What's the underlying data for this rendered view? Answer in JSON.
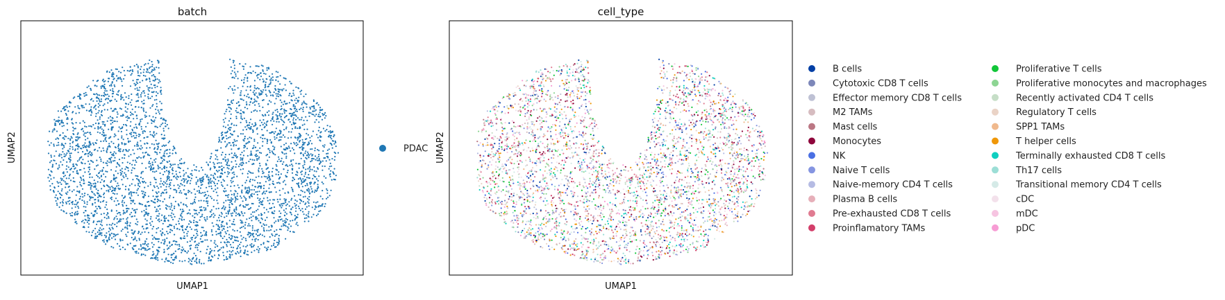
{
  "chart_data": [
    {
      "type": "scatter",
      "title": "batch",
      "xlabel": "UMAP1",
      "ylabel": "UMAP2",
      "grid": false,
      "legend": "right",
      "series": [
        {
          "name": "PDAC",
          "color": "#1f77b4"
        }
      ]
    },
    {
      "type": "scatter",
      "title": "cell_type",
      "xlabel": "UMAP1",
      "ylabel": "UMAP2",
      "grid": false,
      "legend": "right",
      "series": [
        {
          "name": "B cells",
          "color": "#023fa5"
        },
        {
          "name": "Cytotoxic CD8 T cells",
          "color": "#7d87b9"
        },
        {
          "name": "Effector memory CD8 T cells",
          "color": "#bec1d4"
        },
        {
          "name": "M2 TAMs",
          "color": "#d6bcc0"
        },
        {
          "name": "Mast cells",
          "color": "#bb7784"
        },
        {
          "name": "Monocytes",
          "color": "#8e063b"
        },
        {
          "name": "NK",
          "color": "#4a6fe3"
        },
        {
          "name": "Naive T cells",
          "color": "#8595e1"
        },
        {
          "name": "Naive-memory CD4 T cells",
          "color": "#b5bbe3"
        },
        {
          "name": "Plasma B cells",
          "color": "#e6afb9"
        },
        {
          "name": "Pre-exhausted CD8 T cells",
          "color": "#e07b91"
        },
        {
          "name": "Proinflamatory TAMs",
          "color": "#d33f6a"
        },
        {
          "name": "Proliferative T cells",
          "color": "#11c638"
        },
        {
          "name": "Proliferative monocytes and macrophages",
          "color": "#8dd593"
        },
        {
          "name": "Recently activated CD4 T cells",
          "color": "#c6dec7"
        },
        {
          "name": "Regulatory T cells",
          "color": "#ead3c6"
        },
        {
          "name": "SPP1 TAMs",
          "color": "#f0b98d"
        },
        {
          "name": "T helper cells",
          "color": "#ef9708"
        },
        {
          "name": "Terminally exhausted CD8 T cells",
          "color": "#0fcfc0"
        },
        {
          "name": "Th17 cells",
          "color": "#9cded6"
        },
        {
          "name": "Transitional memory CD4 T cells",
          "color": "#d5eae7"
        },
        {
          "name": "cDC",
          "color": "#f3e1eb"
        },
        {
          "name": "mDC",
          "color": "#f6c4e1"
        },
        {
          "name": "pDC",
          "color": "#f79cd4"
        }
      ]
    }
  ]
}
